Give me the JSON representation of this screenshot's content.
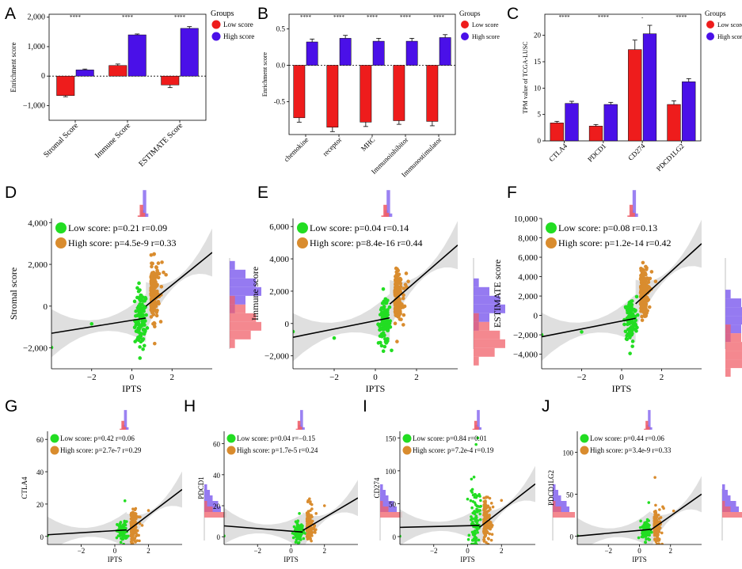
{
  "panel_letters": [
    "A",
    "B",
    "C",
    "D",
    "E",
    "F",
    "G",
    "H",
    "I",
    "J"
  ],
  "colors": {
    "low": "#ee1c1c",
    "high": "#4a10e8",
    "low_point": "#22dd22",
    "high_point": "#d98c2e",
    "low_hist": "#f0606a",
    "high_hist": "#8a6cf0",
    "overlap_hist": "#8c2ab4",
    "band": "#d9d9d9"
  },
  "chart_data": [
    {
      "panel": "A",
      "type": "bar",
      "categories": [
        "Stromal Score",
        "Immune Score",
        "ESTIMATE Score"
      ],
      "series": [
        {
          "name": "Low score",
          "values": [
            -660,
            360,
            -300
          ],
          "errors": [
            40,
            50,
            90
          ]
        },
        {
          "name": "High score",
          "values": [
            210,
            1400,
            1620
          ],
          "errors": [
            30,
            30,
            60
          ]
        }
      ],
      "ylabel": "Enrichment score",
      "ylim": [
        -1500,
        2100
      ],
      "yticks": [
        -1000,
        0,
        1000,
        2000
      ],
      "ytick_labels": [
        "−1,000",
        "0",
        "1,000",
        "2,000"
      ],
      "significance": [
        "****",
        "****",
        "****"
      ],
      "legend_title": "Groups",
      "legend_position": "right"
    },
    {
      "panel": "B",
      "type": "bar",
      "categories": [
        "chemokine",
        "receptor",
        "MHC",
        "Immunoinhibitor",
        "Immunostimulator"
      ],
      "series": [
        {
          "name": "Low score",
          "values": [
            -0.72,
            -0.85,
            -0.78,
            -0.76,
            -0.77
          ],
          "errors": [
            0.06,
            0.06,
            0.06,
            0.05,
            0.06
          ]
        },
        {
          "name": "High score",
          "values": [
            0.32,
            0.37,
            0.33,
            0.33,
            0.38
          ],
          "errors": [
            0.04,
            0.04,
            0.04,
            0.04,
            0.04
          ]
        }
      ],
      "ylabel": "Enrichment score",
      "ylim": [
        -0.95,
        0.7
      ],
      "yticks": [
        -0.5,
        0.0,
        0.5
      ],
      "ytick_labels": [
        "-0.5",
        "0.0",
        "0.5"
      ],
      "significance": [
        "****",
        "****",
        "****",
        "****",
        "****"
      ],
      "legend_title": "Groups",
      "legend_position": "right"
    },
    {
      "panel": "C",
      "type": "bar",
      "categories": [
        "CTLA4",
        "PDCD1",
        "CD274",
        "PDCD1LG2"
      ],
      "series": [
        {
          "name": "Low score",
          "values": [
            3.4,
            2.8,
            17.3,
            6.9
          ],
          "errors": [
            0.3,
            0.3,
            1.8,
            0.7
          ]
        },
        {
          "name": "High score",
          "values": [
            7.1,
            6.9,
            20.3,
            11.2
          ],
          "errors": [
            0.4,
            0.4,
            1.6,
            0.6
          ]
        }
      ],
      "ylabel": "TPM value of TCGA-LUSC",
      "ylim": [
        0,
        24
      ],
      "yticks": [
        0,
        5,
        10,
        15,
        20
      ],
      "ytick_labels": [
        "0",
        "5",
        "10",
        "15",
        "20"
      ],
      "significance": [
        "****",
        "****",
        "-",
        "****"
      ],
      "legend_title": "Groups",
      "legend_position": "right"
    },
    {
      "panel": "D",
      "type": "scatter",
      "xlabel": "IPTS",
      "ylabel": "Stromal score",
      "xlim": [
        -4,
        4
      ],
      "ylim": [
        -3000,
        4200
      ],
      "xticks": [
        -2,
        0,
        2
      ],
      "xtick_labels": [
        "−2",
        "0",
        "2"
      ],
      "yticks": [
        -2000,
        0,
        2000,
        4000
      ],
      "ytick_labels": [
        "−2,000",
        "0",
        "2,000",
        "4,000"
      ],
      "legend": [
        "Low score: p=0.21 r=0.09",
        "High score: p=4.5e-9 r=0.33"
      ],
      "low_fit": [
        [
          -4,
          -1300
        ],
        [
          0.7,
          -570
        ]
      ],
      "high_fit": [
        [
          0.7,
          0
        ],
        [
          4,
          2570
        ]
      ],
      "low_cloud": {
        "cx": 0.45,
        "cy": -650,
        "sx": 0.15,
        "sy": 700,
        "n": 110
      },
      "high_cloud": {
        "cx": 0.9,
        "cy": 750,
        "sx": 0.18,
        "sy": 750,
        "n": 170
      },
      "low_extra": [
        [
          -4,
          -1980
        ],
        [
          -2,
          -850
        ]
      ],
      "high_extra": [
        [
          1.5,
          2100
        ],
        [
          1.7,
          1500
        ]
      ],
      "x_hist_low": [
        0,
        0,
        1,
        9,
        3,
        0,
        0
      ],
      "x_hist_high": [
        0,
        0,
        0,
        2,
        8,
        1,
        0
      ],
      "y_hist_low": [
        1,
        4,
        6,
        5,
        3,
        1,
        0,
        0,
        0
      ],
      "y_hist_high": [
        0,
        0,
        1,
        3,
        6,
        5,
        3,
        1,
        0
      ]
    },
    {
      "panel": "E",
      "type": "scatter",
      "xlabel": "IPTS",
      "ylabel": "Immune score",
      "xlim": [
        -4,
        4
      ],
      "ylim": [
        -2800,
        6500
      ],
      "xticks": [
        -2,
        0,
        2
      ],
      "xtick_labels": [
        "−2",
        "0",
        "2"
      ],
      "yticks": [
        -2000,
        0,
        2000,
        4000,
        6000
      ],
      "ytick_labels": [
        "−2,000",
        "0",
        "2,000",
        "4,000",
        "6,000"
      ],
      "legend": [
        "Low score: p=0.04 r=0.14",
        "High score: p=8.4e-16 r=0.44"
      ],
      "low_fit": [
        [
          -4,
          -850
        ],
        [
          0.7,
          350
        ]
      ],
      "high_fit": [
        [
          0.7,
          1200
        ],
        [
          4,
          4850
        ]
      ],
      "low_cloud": {
        "cx": 0.45,
        "cy": 0,
        "sx": 0.15,
        "sy": 650,
        "n": 110
      },
      "high_cloud": {
        "cx": 0.9,
        "cy": 1700,
        "sx": 0.18,
        "sy": 700,
        "n": 170
      },
      "low_extra": [
        [
          -4,
          -500
        ],
        [
          -2,
          -900
        ]
      ],
      "high_extra": [
        [
          1.5,
          3100
        ],
        [
          1.6,
          2600
        ]
      ],
      "x_hist_low": [
        0,
        0,
        1,
        9,
        3,
        0,
        0
      ],
      "x_hist_high": [
        0,
        0,
        0,
        2,
        8,
        1,
        0
      ],
      "y_hist_low": [
        1,
        4,
        6,
        5,
        3,
        1,
        0,
        0,
        0
      ],
      "y_hist_high": [
        0,
        0,
        1,
        3,
        6,
        5,
        3,
        1,
        0
      ]
    },
    {
      "panel": "F",
      "type": "scatter",
      "xlabel": "IPTS",
      "ylabel": "ESTIMATE score",
      "xlim": [
        -4,
        4
      ],
      "ylim": [
        -5500,
        10000
      ],
      "xticks": [
        -2,
        0,
        2
      ],
      "xtick_labels": [
        "−2",
        "0",
        "2"
      ],
      "yticks": [
        -4000,
        -2000,
        0,
        2000,
        4000,
        6000,
        8000,
        10000
      ],
      "ytick_labels": [
        "−4,000",
        "−2,000",
        "0",
        "2,000",
        "4,000",
        "6,000",
        "8,000",
        "10,000"
      ],
      "legend": [
        "Low score: p=0.08 r=0.13",
        "High score: p=1.2e-14 r=0.42"
      ],
      "low_fit": [
        [
          -4,
          -2200
        ],
        [
          0.7,
          -300
        ]
      ],
      "high_fit": [
        [
          0.7,
          1200
        ],
        [
          4,
          7400
        ]
      ],
      "low_cloud": {
        "cx": 0.45,
        "cy": -500,
        "sx": 0.15,
        "sy": 1200,
        "n": 110
      },
      "high_cloud": {
        "cx": 0.9,
        "cy": 2400,
        "sx": 0.18,
        "sy": 1300,
        "n": 170
      },
      "low_extra": [
        [
          -4,
          -2000
        ],
        [
          -2,
          -1700
        ]
      ],
      "high_extra": [
        [
          1.5,
          4500
        ],
        [
          1.7,
          3500
        ]
      ],
      "x_hist_low": [
        0,
        0,
        1,
        9,
        3,
        0,
        0
      ],
      "x_hist_high": [
        0,
        0,
        0,
        2,
        8,
        1,
        0
      ],
      "y_hist_low": [
        1,
        4,
        6,
        5,
        3,
        1,
        0,
        0,
        0
      ],
      "y_hist_high": [
        0,
        0,
        1,
        3,
        6,
        5,
        3,
        1,
        0
      ]
    },
    {
      "panel": "G",
      "type": "scatter",
      "xlabel": "IPTS",
      "ylabel": "CTLA4",
      "xlim": [
        -4,
        4
      ],
      "ylim": [
        -5,
        65
      ],
      "xticks": [
        -2,
        0,
        2
      ],
      "xtick_labels": [
        "−2",
        "0",
        "2"
      ],
      "yticks": [
        0,
        20,
        40,
        60
      ],
      "ytick_labels": [
        "0",
        "20",
        "40",
        "60"
      ],
      "legend": [
        "Low score: p=0.42 r=0.06",
        "High score: p=2.7e-7 r=0.29"
      ],
      "low_fit": [
        [
          -4,
          1
        ],
        [
          0.7,
          4
        ]
      ],
      "high_fit": [
        [
          0.7,
          3
        ],
        [
          4,
          29
        ]
      ],
      "low_cloud": {
        "cx": 0.45,
        "cy": 3,
        "sx": 0.15,
        "sy": 3,
        "n": 100
      },
      "high_cloud": {
        "cx": 0.9,
        "cy": 6,
        "sx": 0.18,
        "sy": 5,
        "n": 160
      },
      "low_extra": [
        [
          0.6,
          22
        ],
        [
          -4,
          0.5
        ]
      ],
      "high_extra": [
        [
          1.5,
          12
        ],
        [
          2,
          16
        ]
      ],
      "x_hist_low": [
        0,
        0,
        1,
        9,
        3,
        0,
        0
      ],
      "x_hist_high": [
        0,
        0,
        0,
        2,
        8,
        1,
        0
      ],
      "y_hist_low": [
        8,
        3,
        1,
        0,
        0,
        0,
        0
      ],
      "y_hist_high": [
        6,
        5,
        3,
        2,
        1,
        0,
        0
      ]
    },
    {
      "panel": "H",
      "type": "scatter",
      "xlabel": "IPTS",
      "ylabel": "PDCD1",
      "xlim": [
        -4,
        4
      ],
      "ylim": [
        -5,
        68
      ],
      "xticks": [
        -2,
        0,
        2
      ],
      "xtick_labels": [
        "−2",
        "0",
        "2"
      ],
      "yticks": [
        0,
        20,
        40,
        60
      ],
      "ytick_labels": [
        "0",
        "20",
        "40",
        "60"
      ],
      "legend": [
        "Low score: p=0.04 r=−0.15",
        "High score: p=1.7e-5 r=0.24"
      ],
      "low_fit": [
        [
          -4,
          7
        ],
        [
          0.7,
          3
        ]
      ],
      "high_fit": [
        [
          0.7,
          4
        ],
        [
          4,
          25
        ]
      ],
      "low_cloud": {
        "cx": 0.45,
        "cy": 3,
        "sx": 0.15,
        "sy": 3,
        "n": 100
      },
      "high_cloud": {
        "cx": 0.9,
        "cy": 7,
        "sx": 0.18,
        "sy": 6,
        "n": 160
      },
      "low_extra": [
        [
          -4,
          0.5
        ],
        [
          0.5,
          15
        ]
      ],
      "high_extra": [
        [
          1.5,
          15
        ],
        [
          2,
          20
        ]
      ],
      "x_hist_low": [
        0,
        0,
        1,
        9,
        3,
        0,
        0
      ],
      "x_hist_high": [
        0,
        0,
        0,
        2,
        8,
        1,
        0
      ],
      "y_hist_low": [
        8,
        3,
        1,
        0,
        0,
        0,
        0
      ],
      "y_hist_high": [
        6,
        5,
        3,
        2,
        1,
        0,
        0
      ]
    },
    {
      "panel": "I",
      "type": "scatter",
      "xlabel": "IPTS",
      "ylabel": "CD274",
      "xlim": [
        -4,
        4
      ],
      "ylim": [
        -12,
        160
      ],
      "xticks": [
        -2,
        0,
        2
      ],
      "xtick_labels": [
        "−2",
        "0",
        "2"
      ],
      "yticks": [
        0,
        50,
        100,
        150
      ],
      "ytick_labels": [
        "0",
        "50",
        "100",
        "150"
      ],
      "legend": [
        "Low score: p=0.84 r=0.01",
        "High score: p=7.2e-4 r=0.19"
      ],
      "low_fit": [
        [
          -4,
          14
        ],
        [
          0.7,
          17
        ]
      ],
      "high_fit": [
        [
          0.7,
          14
        ],
        [
          4,
          80
        ]
      ],
      "low_cloud": {
        "cx": 0.45,
        "cy": 25,
        "sx": 0.15,
        "sy": 25,
        "n": 100
      },
      "high_cloud": {
        "cx": 0.9,
        "cy": 22,
        "sx": 0.18,
        "sy": 18,
        "n": 160
      },
      "low_extra": [
        [
          0.5,
          140
        ],
        [
          0.6,
          150
        ],
        [
          -4,
          0.5
        ]
      ],
      "high_extra": [
        [
          1.5,
          45
        ],
        [
          2,
          55
        ]
      ],
      "x_hist_low": [
        0,
        0,
        1,
        9,
        3,
        0,
        0
      ],
      "x_hist_high": [
        0,
        0,
        0,
        2,
        8,
        1,
        0
      ],
      "y_hist_low": [
        8,
        3,
        1,
        0,
        0,
        0,
        0
      ],
      "y_hist_high": [
        6,
        5,
        3,
        2,
        1,
        0,
        0
      ]
    },
    {
      "panel": "J",
      "type": "scatter",
      "xlabel": "IPTS",
      "ylabel": "PDCD1LG2",
      "xlim": [
        -4,
        4
      ],
      "ylim": [
        -10,
        125
      ],
      "xticks": [
        -2,
        0,
        2
      ],
      "xtick_labels": [
        "−2",
        "0",
        "2"
      ],
      "yticks": [
        0,
        50,
        100
      ],
      "ytick_labels": [
        "0",
        "50",
        "100"
      ],
      "legend": [
        "Low score: p=0.44 r=0.06",
        "High score: p=3.4e-9 r=0.33"
      ],
      "low_fit": [
        [
          -4,
          0
        ],
        [
          0.7,
          8
        ]
      ],
      "high_fit": [
        [
          0.7,
          7
        ],
        [
          4,
          50
        ]
      ],
      "low_cloud": {
        "cx": 0.45,
        "cy": 7,
        "sx": 0.15,
        "sy": 6,
        "n": 100
      },
      "high_cloud": {
        "cx": 0.9,
        "cy": 12,
        "sx": 0.18,
        "sy": 10,
        "n": 160
      },
      "low_extra": [
        [
          -4,
          0.5
        ],
        [
          0.6,
          40
        ]
      ],
      "high_extra": [
        [
          1.5,
          35
        ],
        [
          2.2,
          30
        ],
        [
          1.0,
          70
        ]
      ],
      "x_hist_low": [
        0,
        0,
        1,
        9,
        3,
        0,
        0
      ],
      "x_hist_high": [
        0,
        0,
        0,
        2,
        8,
        1,
        0
      ],
      "y_hist_low": [
        8,
        3,
        1,
        0,
        0,
        0,
        0
      ],
      "y_hist_high": [
        6,
        5,
        3,
        2,
        1,
        0,
        0
      ]
    }
  ]
}
